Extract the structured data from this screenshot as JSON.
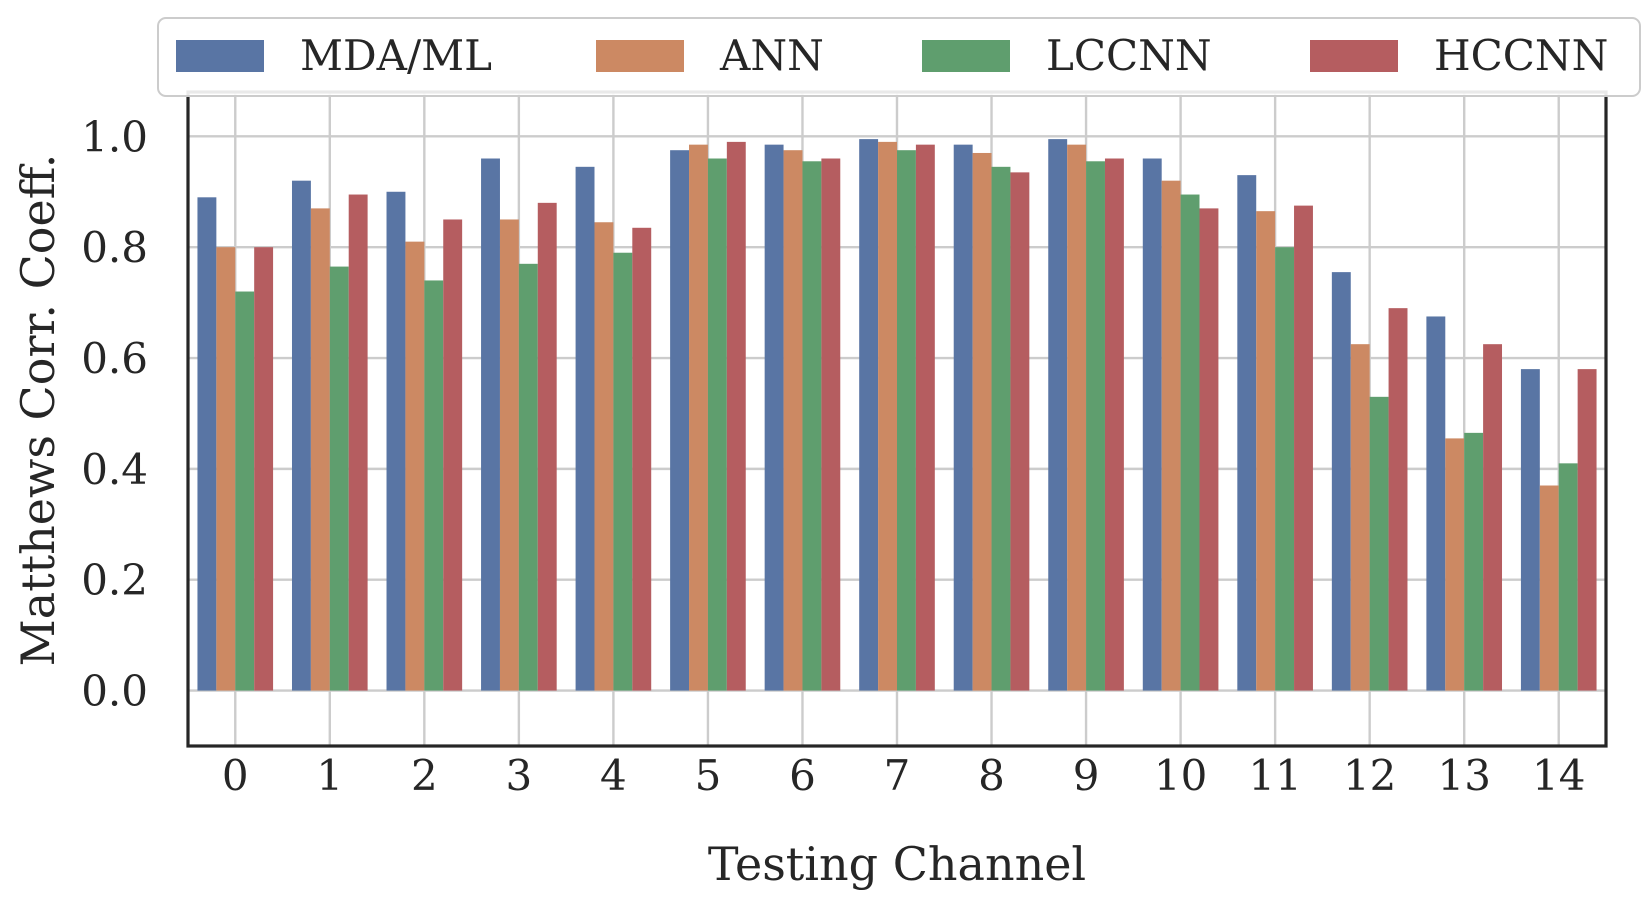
{
  "chart_data": {
    "type": "bar",
    "xlabel": "Testing Channel",
    "ylabel": "Matthews Corr. Coeff.",
    "ylim": [
      -0.1,
      1.08
    ],
    "yticks": [
      0.0,
      0.2,
      0.4,
      0.6,
      0.8,
      1.0
    ],
    "ytick_labels": [
      "0.0",
      "0.2",
      "0.4",
      "0.6",
      "0.8",
      "1.0"
    ],
    "categories": [
      "0",
      "1",
      "2",
      "3",
      "4",
      "5",
      "6",
      "7",
      "8",
      "9",
      "10",
      "11",
      "12",
      "13",
      "14"
    ],
    "legend_position": "top",
    "grid": true,
    "series": [
      {
        "name": "MDA/ML",
        "color": "#5975a4",
        "values": [
          0.89,
          0.92,
          0.9,
          0.96,
          0.945,
          0.975,
          0.985,
          0.995,
          0.985,
          0.995,
          0.96,
          0.93,
          0.755,
          0.675,
          0.58
        ]
      },
      {
        "name": "ANN",
        "color": "#cc8963",
        "values": [
          0.8,
          0.87,
          0.81,
          0.85,
          0.845,
          0.985,
          0.975,
          0.99,
          0.97,
          0.985,
          0.92,
          0.865,
          0.625,
          0.455,
          0.37
        ]
      },
      {
        "name": "LCCNN",
        "color": "#5f9e6e",
        "values": [
          0.72,
          0.765,
          0.74,
          0.77,
          0.79,
          0.96,
          0.955,
          0.975,
          0.945,
          0.955,
          0.895,
          0.8,
          0.53,
          0.465,
          0.41
        ]
      },
      {
        "name": "HCCNN",
        "color": "#b55d60",
        "values": [
          0.8,
          0.895,
          0.85,
          0.88,
          0.835,
          0.99,
          0.96,
          0.985,
          0.935,
          0.96,
          0.87,
          0.875,
          0.69,
          0.625,
          0.58
        ]
      }
    ]
  }
}
